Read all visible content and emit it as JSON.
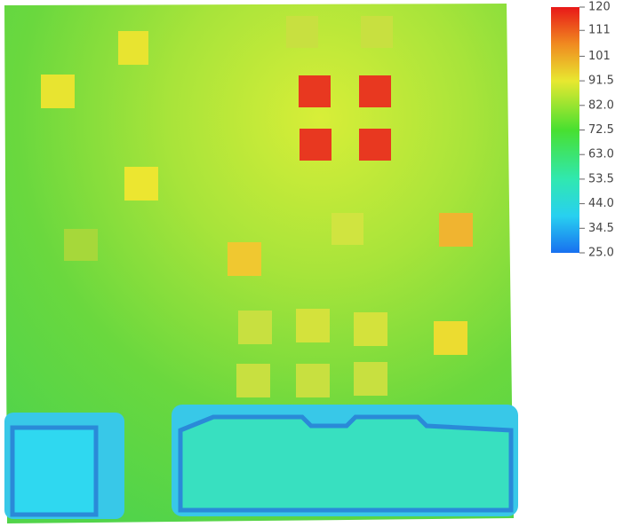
{
  "chart_data": {
    "type": "colorbar",
    "clim": [
      25,
      120
    ],
    "ticks": [
      120,
      111,
      101,
      91.5,
      {
        "value": 82,
        "label": "82.0"
      },
      72.5,
      {
        "value": 63,
        "label": "63.0"
      },
      53.5,
      {
        "value": 44,
        "label": "44.0"
      },
      34.5,
      {
        "value": 25,
        "label": "25.0"
      }
    ]
  }
}
